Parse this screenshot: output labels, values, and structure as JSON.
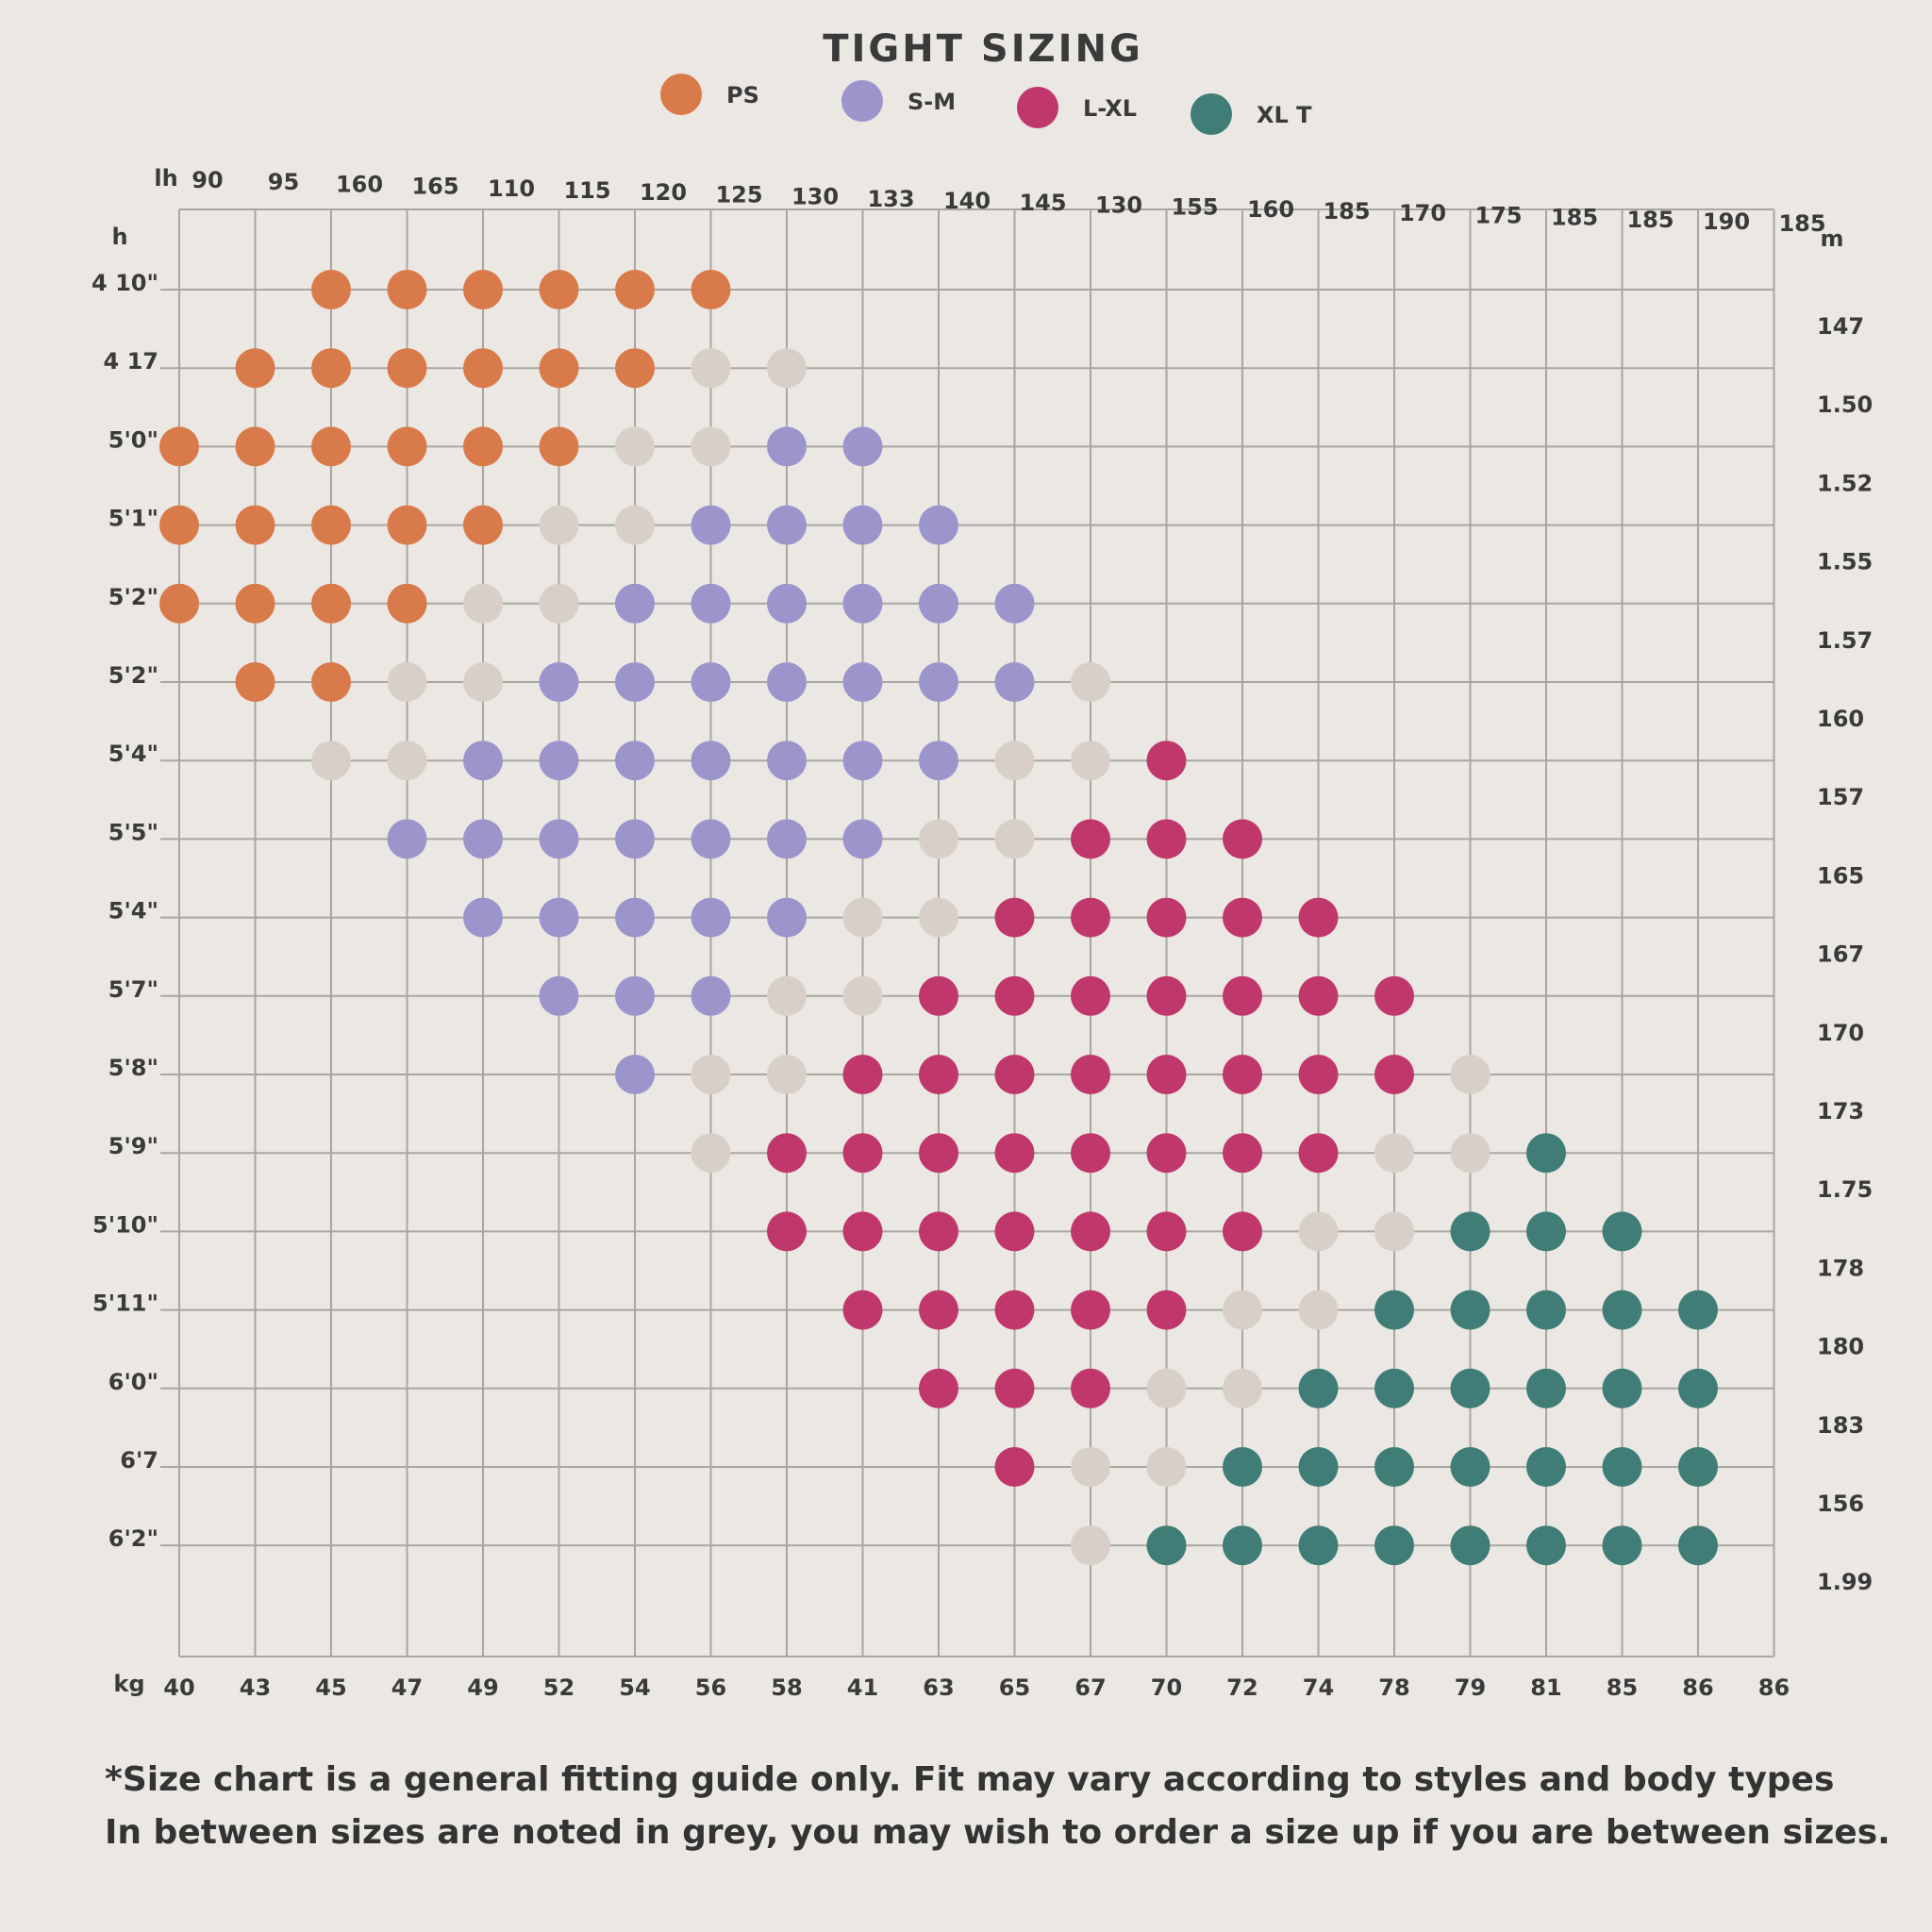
{
  "chart_data": {
    "type": "dot-grid",
    "title": "TIGHT SIZING",
    "x_label": "kg",
    "x_top_label": "lh",
    "y_label": "h",
    "y2_label": "m",
    "x_categories": [
      "40",
      "43",
      "45",
      "47",
      "49",
      "52",
      "54",
      "56",
      "58",
      "41",
      "63",
      "65",
      "67",
      "70",
      "72",
      "74",
      "78",
      "79",
      "81",
      "85",
      "86",
      "86"
    ],
    "x_top_categories": [
      "90",
      "95",
      "160",
      "165",
      "110",
      "115",
      "120",
      "125",
      "130",
      "133",
      "140",
      "145",
      "130",
      "155",
      "160",
      "185",
      "170",
      "175",
      "185",
      "185",
      "190",
      "185"
    ],
    "y_categories": [
      "4 10\"",
      "4 17",
      "5'0\"",
      "5'1\"",
      "5'2\"",
      "5'2\"",
      "5'4\"",
      "5'5\"",
      "5'4\"",
      "5'7\"",
      "5'8\"",
      "5'9\"",
      "5'10\"",
      "5'11\"",
      "6'0\"",
      "6'7",
      "6'2\""
    ],
    "y2_categories": [
      "147",
      "1.50",
      "1.52",
      "1.55",
      "1.57",
      "160",
      "157",
      "165",
      "167",
      "170",
      "173",
      "1.75",
      "178",
      "180",
      "183",
      "156",
      "1.99"
    ],
    "grid": true,
    "series": [
      {
        "name": "PS",
        "color": "#d97a4a",
        "points": [
          [
            2,
            0
          ],
          [
            3,
            0
          ],
          [
            4,
            0
          ],
          [
            5,
            0
          ],
          [
            6,
            0
          ],
          [
            7,
            0
          ],
          [
            1,
            1
          ],
          [
            2,
            1
          ],
          [
            3,
            1
          ],
          [
            4,
            1
          ],
          [
            5,
            1
          ],
          [
            6,
            1
          ],
          [
            0,
            2
          ],
          [
            1,
            2
          ],
          [
            2,
            2
          ],
          [
            3,
            2
          ],
          [
            4,
            2
          ],
          [
            5,
            2
          ],
          [
            0,
            3
          ],
          [
            1,
            3
          ],
          [
            2,
            3
          ],
          [
            3,
            3
          ],
          [
            4,
            3
          ],
          [
            0,
            4
          ],
          [
            1,
            4
          ],
          [
            2,
            4
          ],
          [
            3,
            4
          ],
          [
            1,
            5
          ],
          [
            2,
            5
          ]
        ]
      },
      {
        "name": "S-M",
        "color": "#9b95cc",
        "points": [
          [
            8,
            2
          ],
          [
            9,
            2
          ],
          [
            7,
            3
          ],
          [
            8,
            3
          ],
          [
            9,
            3
          ],
          [
            10,
            3
          ],
          [
            6,
            4
          ],
          [
            7,
            4
          ],
          [
            8,
            4
          ],
          [
            9,
            4
          ],
          [
            10,
            4
          ],
          [
            11,
            4
          ],
          [
            5,
            5
          ],
          [
            6,
            5
          ],
          [
            7,
            5
          ],
          [
            8,
            5
          ],
          [
            9,
            5
          ],
          [
            10,
            5
          ],
          [
            11,
            5
          ],
          [
            4,
            6
          ],
          [
            5,
            6
          ],
          [
            6,
            6
          ],
          [
            7,
            6
          ],
          [
            8,
            6
          ],
          [
            9,
            6
          ],
          [
            10,
            6
          ],
          [
            3,
            7
          ],
          [
            4,
            7
          ],
          [
            5,
            7
          ],
          [
            6,
            7
          ],
          [
            7,
            7
          ],
          [
            8,
            7
          ],
          [
            9,
            7
          ],
          [
            4,
            8
          ],
          [
            5,
            8
          ],
          [
            6,
            8
          ],
          [
            7,
            8
          ],
          [
            8,
            8
          ],
          [
            5,
            9
          ],
          [
            6,
            9
          ],
          [
            7,
            9
          ],
          [
            6,
            10
          ]
        ]
      },
      {
        "name": "L-XL",
        "color": "#c0376c",
        "points": [
          [
            13,
            6
          ],
          [
            12,
            7
          ],
          [
            13,
            7
          ],
          [
            14,
            7
          ],
          [
            11,
            8
          ],
          [
            12,
            8
          ],
          [
            13,
            8
          ],
          [
            14,
            8
          ],
          [
            15,
            8
          ],
          [
            10,
            9
          ],
          [
            11,
            9
          ],
          [
            12,
            9
          ],
          [
            13,
            9
          ],
          [
            14,
            9
          ],
          [
            15,
            9
          ],
          [
            16,
            9
          ],
          [
            9,
            10
          ],
          [
            10,
            10
          ],
          [
            11,
            10
          ],
          [
            12,
            10
          ],
          [
            13,
            10
          ],
          [
            14,
            10
          ],
          [
            15,
            10
          ],
          [
            16,
            10
          ],
          [
            8,
            11
          ],
          [
            9,
            11
          ],
          [
            10,
            11
          ],
          [
            11,
            11
          ],
          [
            12,
            11
          ],
          [
            13,
            11
          ],
          [
            14,
            11
          ],
          [
            15,
            11
          ],
          [
            8,
            12
          ],
          [
            9,
            12
          ],
          [
            10,
            12
          ],
          [
            11,
            12
          ],
          [
            12,
            12
          ],
          [
            13,
            12
          ],
          [
            14,
            12
          ],
          [
            9,
            13
          ],
          [
            10,
            13
          ],
          [
            11,
            13
          ],
          [
            12,
            13
          ],
          [
            13,
            13
          ],
          [
            10,
            14
          ],
          [
            11,
            14
          ],
          [
            12,
            14
          ],
          [
            11,
            15
          ]
        ]
      },
      {
        "name": "XL T",
        "color": "#3f7d76",
        "points": [
          [
            18,
            11
          ],
          [
            17,
            12
          ],
          [
            18,
            12
          ],
          [
            19,
            12
          ],
          [
            16,
            13
          ],
          [
            17,
            13
          ],
          [
            18,
            13
          ],
          [
            19,
            13
          ],
          [
            20,
            13
          ],
          [
            15,
            14
          ],
          [
            16,
            14
          ],
          [
            17,
            14
          ],
          [
            18,
            14
          ],
          [
            19,
            14
          ],
          [
            20,
            14
          ],
          [
            14,
            15
          ],
          [
            15,
            15
          ],
          [
            16,
            15
          ],
          [
            17,
            15
          ],
          [
            18,
            15
          ],
          [
            19,
            15
          ],
          [
            20,
            15
          ],
          [
            13,
            16
          ],
          [
            14,
            16
          ],
          [
            15,
            16
          ],
          [
            16,
            16
          ],
          [
            17,
            16
          ],
          [
            18,
            16
          ],
          [
            19,
            16
          ],
          [
            20,
            16
          ]
        ]
      },
      {
        "color": "#d8d0c8",
        "points": [
          [
            7,
            1
          ],
          [
            8,
            1
          ],
          [
            6,
            2
          ],
          [
            7,
            2
          ],
          [
            5,
            3
          ],
          [
            6,
            3
          ],
          [
            4,
            4
          ],
          [
            5,
            4
          ],
          [
            3,
            5
          ],
          [
            4,
            5
          ],
          [
            12,
            5
          ],
          [
            2,
            6
          ],
          [
            3,
            6
          ],
          [
            11,
            6
          ],
          [
            12,
            6
          ],
          [
            10,
            7
          ],
          [
            11,
            7
          ],
          [
            9,
            8
          ],
          [
            10,
            8
          ],
          [
            8,
            9
          ],
          [
            9,
            9
          ],
          [
            7,
            10
          ],
          [
            8,
            10
          ],
          [
            17,
            10
          ],
          [
            7,
            11
          ],
          [
            16,
            11
          ],
          [
            17,
            11
          ],
          [
            15,
            12
          ],
          [
            16,
            12
          ],
          [
            14,
            13
          ],
          [
            15,
            13
          ],
          [
            13,
            14
          ],
          [
            14,
            14
          ],
          [
            12,
            15
          ],
          [
            13,
            15
          ],
          [
            12,
            16
          ]
        ]
      }
    ],
    "footnote": [
      "*Size chart is a general fitting guide only. Fit may vary according to styles and body types",
      "In between sizes are noted in grey, you may wish to order a size up if you are between sizes."
    ]
  }
}
